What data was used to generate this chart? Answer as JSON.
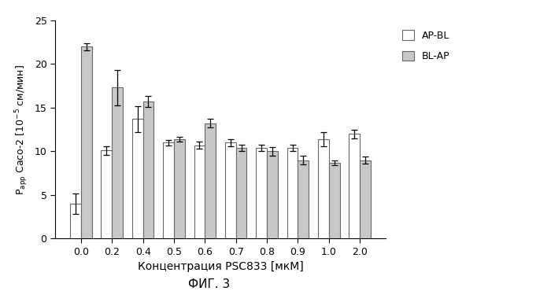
{
  "categories": [
    "0.0",
    "0.2",
    "0.4",
    "0.5",
    "0.6",
    "0.7",
    "0.8",
    "0.9",
    "1.0",
    "2.0"
  ],
  "ap_bl_values": [
    4.0,
    10.1,
    13.7,
    11.0,
    10.7,
    11.0,
    10.4,
    10.4,
    11.4,
    12.0
  ],
  "bl_ap_values": [
    22.0,
    17.3,
    15.7,
    11.4,
    13.2,
    10.4,
    10.0,
    9.0,
    8.7,
    9.0
  ],
  "ap_bl_errors": [
    1.2,
    0.5,
    1.5,
    0.3,
    0.4,
    0.4,
    0.4,
    0.4,
    0.8,
    0.5
  ],
  "bl_ap_errors": [
    0.4,
    2.0,
    0.6,
    0.3,
    0.5,
    0.4,
    0.5,
    0.5,
    0.3,
    0.4
  ],
  "ap_bl_color": "#ffffff",
  "bl_ap_color": "#c8c8c8",
  "bar_edge_color": "#666666",
  "xlabel": "Концентрация PSC833 [мкМ]",
  "title": "ФИГ. 3",
  "legend_ap_bl": "AP-BL",
  "legend_bl_ap": "BL-AP",
  "ylim": [
    0,
    25
  ],
  "yticks": [
    0,
    5,
    10,
    15,
    20,
    25
  ],
  "bar_width": 0.35,
  "figsize": [
    7.0,
    3.7
  ],
  "dpi": 100,
  "background_color": "#ffffff"
}
